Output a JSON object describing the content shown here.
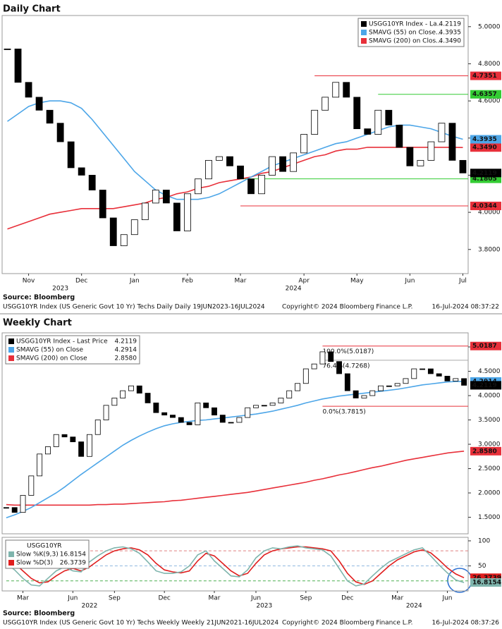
{
  "chart_data": [
    {
      "type": "line",
      "title": "Daily Chart",
      "source": "Source: Bloomberg",
      "footer_left": "USGG10YR Index (US Generic Govt 10 Yr) Techs Daily  Daily 19JUN2023-16JUL2024",
      "footer_center": "Copyright© 2024 Bloomberg Finance L.P.",
      "footer_right": "16-Jul-2024 08:37:22",
      "legend": "upper right",
      "ylim": [
        3.67,
        5.06
      ],
      "yticks": [
        {
          "value": 3.8,
          "label": "3.8000"
        },
        {
          "value": 4.0,
          "label": "4.0000"
        },
        {
          "value": 4.2,
          "label": "4.2000"
        },
        {
          "value": 4.4,
          "label": "4.4000"
        },
        {
          "value": 4.6,
          "label": "4.6000"
        },
        {
          "value": 4.8,
          "label": "4.8000"
        },
        {
          "value": 5.0,
          "label": "5.0000"
        }
      ],
      "categories": [
        null,
        null,
        "Nov",
        null,
        null,
        null,
        null,
        "Dec",
        null,
        null,
        null,
        null,
        "Jan",
        null,
        null,
        null,
        null,
        "Feb",
        null,
        null,
        null,
        null,
        "Mar",
        null,
        null,
        null,
        null,
        null,
        "Apr",
        null,
        null,
        null,
        null,
        "May",
        null,
        null,
        null,
        null,
        "Jun",
        null,
        null,
        null,
        null,
        "Jul"
      ],
      "year_categories": [
        null,
        null,
        null,
        null,
        null,
        "2023",
        null,
        null,
        null,
        null,
        null,
        null,
        null,
        null,
        null,
        null,
        null,
        null,
        null,
        null,
        null,
        null,
        null,
        null,
        null,
        null,
        null,
        "2024",
        null,
        null,
        null,
        null,
        null,
        null,
        null,
        null,
        null,
        null,
        null,
        null,
        null,
        null,
        null,
        null
      ],
      "series": [
        {
          "name": "SMAVG (200)  on Clos...",
          "color": "#e8303a",
          "style": "line",
          "last": {
            "value": 4.349,
            "label": "4.3490"
          },
          "values": [
            3.91,
            3.93,
            3.95,
            3.97,
            3.99,
            4.0,
            4.01,
            4.02,
            4.02,
            4.02,
            4.02,
            4.03,
            4.04,
            4.05,
            4.07,
            4.08,
            4.1,
            4.11,
            4.13,
            4.14,
            4.16,
            4.17,
            4.18,
            4.19,
            4.21,
            4.22,
            4.24,
            4.26,
            4.28,
            4.3,
            4.31,
            4.33,
            4.34,
            4.34,
            4.35,
            4.35,
            4.35,
            4.35,
            4.35,
            4.35,
            4.35,
            4.35,
            4.35,
            4.349
          ]
        },
        {
          "name": "SMAVG (55)  on Close...",
          "color": "#4da6e8",
          "style": "line",
          "last": 4.3935,
          "values": [
            4.49,
            4.53,
            4.57,
            4.59,
            4.6,
            4.6,
            4.59,
            4.56,
            4.5,
            4.43,
            4.36,
            4.29,
            4.22,
            4.17,
            4.12,
            4.09,
            4.07,
            4.07,
            4.07,
            4.08,
            4.1,
            4.13,
            4.16,
            4.19,
            4.22,
            4.25,
            4.27,
            4.29,
            4.31,
            4.33,
            4.35,
            4.37,
            4.38,
            4.4,
            4.42,
            4.44,
            4.46,
            4.47,
            4.47,
            4.46,
            4.45,
            4.43,
            4.41,
            4.3935
          ]
        },
        {
          "name": "USGG10YR Index - La...",
          "color": "#000000",
          "style": "candle",
          "last": 4.2119,
          "values": [
            4.88,
            4.7,
            4.62,
            4.55,
            4.48,
            4.38,
            4.24,
            4.2,
            4.12,
            3.97,
            3.82,
            3.88,
            3.96,
            4.05,
            4.12,
            4.05,
            3.9,
            4.1,
            4.18,
            4.28,
            4.3,
            4.25,
            4.18,
            4.1,
            4.2,
            4.3,
            4.22,
            4.32,
            4.42,
            4.55,
            4.62,
            4.7,
            4.62,
            4.45,
            4.42,
            4.55,
            4.47,
            4.35,
            4.25,
            4.28,
            4.38,
            4.48,
            4.28,
            4.2119
          ]
        }
      ],
      "legend_order": [
        2,
        1,
        0
      ],
      "levels": [
        {
          "value": 4.7351,
          "color": "#e8303a",
          "from": 29,
          "right_label": true
        },
        {
          "value": 4.6357,
          "color": "#33cc33",
          "from": 35,
          "right_label": true
        },
        {
          "value": 4.1805,
          "color": "#33cc33",
          "from": 22,
          "right_label": true
        },
        {
          "value": 4.0344,
          "color": "#e8303a",
          "from": 22,
          "right_label": true
        }
      ]
    },
    {
      "type": "line",
      "title": "Weekly Chart",
      "source": "Source: Bloomberg",
      "footer_left": "USGG10YR Index (US Generic Govt 10 Yr) Techs Weekly  Weekly 21JUN2021-16JUL2024",
      "footer_center": "Copyright© 2024 Bloomberg Finance L.P.",
      "footer_right": "16-Jul-2024 08:37:26",
      "legend": "upper left",
      "ylim": [
        1.16,
        5.29
      ],
      "yticks": [
        {
          "value": 1.5,
          "label": "1.5000"
        },
        {
          "value": 2.0,
          "label": "2.0000"
        },
        {
          "value": 2.5,
          "label": "2.5000"
        },
        {
          "value": 3.0,
          "label": "3.0000"
        },
        {
          "value": 3.5,
          "label": "3.5000"
        },
        {
          "value": 4.0,
          "label": "4.0000"
        },
        {
          "value": 4.5,
          "label": "4.5000"
        },
        {
          "value": 5.0,
          "label": "5.0000"
        }
      ],
      "series": [
        {
          "name": "SMAVG (200)  on Close",
          "color": "#e8303a",
          "style": "line",
          "last": {
            "value": 2.858,
            "label": "2.8580"
          },
          "values": [
            1.76,
            1.75,
            1.75,
            1.75,
            1.75,
            1.75,
            1.75,
            1.75,
            1.75,
            1.75,
            1.75,
            1.76,
            1.76,
            1.77,
            1.77,
            1.78,
            1.79,
            1.8,
            1.81,
            1.82,
            1.84,
            1.85,
            1.87,
            1.89,
            1.91,
            1.93,
            1.95,
            1.97,
            1.99,
            2.01,
            2.04,
            2.07,
            2.1,
            2.13,
            2.16,
            2.19,
            2.22,
            2.26,
            2.29,
            2.33,
            2.37,
            2.4,
            2.44,
            2.48,
            2.52,
            2.55,
            2.59,
            2.63,
            2.67,
            2.7,
            2.73,
            2.76,
            2.79,
            2.82,
            2.84,
            2.858
          ]
        },
        {
          "name": "SMAVG (55)  on Close",
          "color": "#4da6e8",
          "style": "line",
          "last": 4.2914,
          "values": [
            1.49,
            1.55,
            1.62,
            1.7,
            1.8,
            1.9,
            2.0,
            2.12,
            2.25,
            2.38,
            2.5,
            2.62,
            2.74,
            2.86,
            2.98,
            3.08,
            3.17,
            3.25,
            3.32,
            3.38,
            3.42,
            3.45,
            3.47,
            3.49,
            3.5,
            3.52,
            3.54,
            3.56,
            3.58,
            3.6,
            3.62,
            3.65,
            3.68,
            3.72,
            3.76,
            3.8,
            3.85,
            3.89,
            3.93,
            3.96,
            3.99,
            4.01,
            4.03,
            4.05,
            4.07,
            4.09,
            4.11,
            4.13,
            4.16,
            4.19,
            4.22,
            4.24,
            4.26,
            4.28,
            4.29,
            4.2914
          ]
        },
        {
          "name": "USGG10YR Index - Last Price",
          "color": "#000000",
          "style": "candle",
          "last": 4.2119,
          "values": [
            1.7,
            1.6,
            1.95,
            2.35,
            2.8,
            2.95,
            3.2,
            3.15,
            3.05,
            2.75,
            3.2,
            3.5,
            3.8,
            3.95,
            4.1,
            4.2,
            4.05,
            3.85,
            3.65,
            3.6,
            3.55,
            3.45,
            3.4,
            3.85,
            3.75,
            3.6,
            3.45,
            3.45,
            3.55,
            3.75,
            3.8,
            3.8,
            3.85,
            3.95,
            4.1,
            4.25,
            4.55,
            4.65,
            4.9,
            4.7,
            4.45,
            4.1,
            3.95,
            4.0,
            4.1,
            4.2,
            4.2,
            4.25,
            4.35,
            4.55,
            4.55,
            4.45,
            4.4,
            4.3,
            4.35,
            4.2119
          ]
        }
      ],
      "legend_order": [
        2,
        1,
        0
      ],
      "levels": [
        {
          "value": 5.0187,
          "color": "#e8303a",
          "from": 38,
          "text": "100.0%(5.0187)",
          "right_label": true
        },
        {
          "value": 4.7268,
          "color": "#aaaaaa",
          "from": 38,
          "text": "76.4%(4.7268)"
        },
        {
          "value": 3.7815,
          "color": "#e8303a",
          "from": 38,
          "text": "0.0%(3.7815)"
        }
      ]
    },
    {
      "type": "line",
      "legend": "upper left",
      "legend_title": "USGG10YR",
      "ylim": [
        0,
        107
      ],
      "yticks": [
        50,
        100
      ],
      "categories": [
        null,
        null,
        "Mar",
        null,
        null,
        null,
        null,
        null,
        "Jun",
        null,
        null,
        null,
        null,
        "Sep",
        null,
        null,
        null,
        null,
        null,
        "Dec",
        null,
        null,
        null,
        null,
        null,
        "Mar",
        null,
        null,
        null,
        null,
        "Jun",
        null,
        null,
        null,
        null,
        null,
        "Sep",
        null,
        null,
        null,
        null,
        "Dec",
        null,
        null,
        null,
        null,
        null,
        "Mar",
        null,
        null,
        null,
        null,
        null,
        "Jun",
        null,
        null
      ],
      "year_categories": [
        null,
        null,
        null,
        null,
        null,
        null,
        null,
        null,
        null,
        null,
        "2022",
        null,
        null,
        null,
        null,
        null,
        null,
        null,
        null,
        null,
        null,
        null,
        null,
        null,
        null,
        null,
        null,
        null,
        null,
        null,
        null,
        "2023",
        null,
        null,
        null,
        null,
        null,
        null,
        null,
        null,
        null,
        null,
        null,
        null,
        null,
        null,
        null,
        null,
        null,
        "2024",
        null,
        null,
        null,
        null,
        null,
        null
      ],
      "series": [
        {
          "name": "Slow %D(3)",
          "color": "#e01e1e",
          "style": "line",
          "last": 26.3739,
          "values": [
            62,
            55,
            40,
            25,
            16,
            18,
            30,
            40,
            45,
            40,
            48,
            60,
            72,
            80,
            84,
            86,
            82,
            72,
            55,
            42,
            38,
            36,
            40,
            60,
            75,
            70,
            55,
            40,
            30,
            35,
            55,
            72,
            80,
            84,
            86,
            88,
            88,
            86,
            84,
            80,
            60,
            35,
            18,
            13,
            20,
            35,
            50,
            62,
            70,
            78,
            82,
            76,
            62,
            46,
            34,
            26.3739
          ]
        },
        {
          "name": "Slow %K(9,3)",
          "color": "#7fb5ad",
          "style": "line",
          "last": 16.8154,
          "values": [
            55,
            42,
            25,
            12,
            10,
            25,
            40,
            48,
            40,
            38,
            58,
            70,
            80,
            86,
            88,
            84,
            75,
            58,
            40,
            35,
            35,
            38,
            50,
            72,
            80,
            60,
            45,
            30,
            28,
            42,
            66,
            80,
            86,
            84,
            88,
            90,
            86,
            84,
            82,
            70,
            45,
            20,
            10,
            14,
            30,
            45,
            58,
            66,
            74,
            82,
            86,
            70,
            52,
            36,
            22,
            16.8154
          ]
        }
      ],
      "legend_order": [
        1,
        0
      ],
      "levels": [
        {
          "value": 80,
          "color": "#e08080",
          "from": 0,
          "dash": true
        },
        {
          "value": 50,
          "color": "#8fb8e0",
          "from": 0,
          "dash": true
        },
        {
          "value": 20,
          "color": "#4caf50",
          "from": 0,
          "dash": true
        }
      ]
    }
  ]
}
